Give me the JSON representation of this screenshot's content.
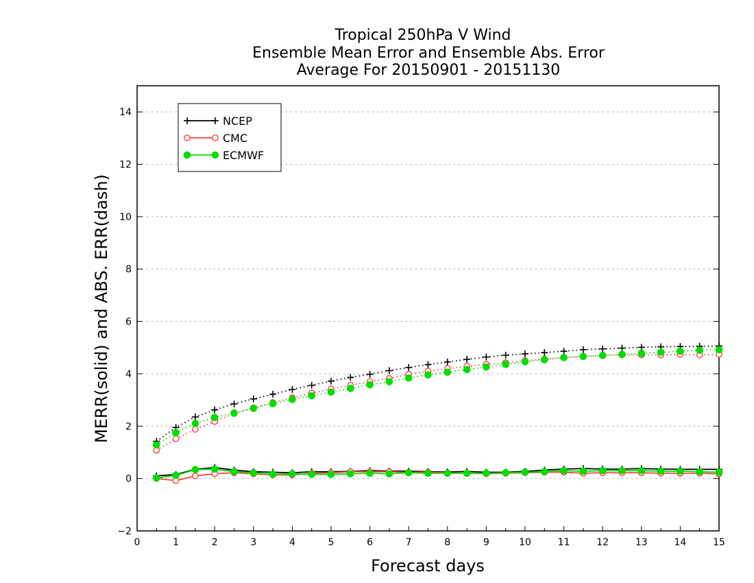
{
  "chart_data": {
    "type": "line",
    "title": "Tropical 250hPa V Wind",
    "subtitle": "Ensemble Mean Error and Ensemble Abs. Error",
    "subtitle2": "Average For 20150901 - 20151130",
    "xlabel": "Forecast days",
    "ylabel": "MERR(solid) and ABS. ERR(dash)",
    "xlim": [
      0,
      15
    ],
    "ylim": [
      -2,
      15
    ],
    "xticks": [
      "0",
      "1",
      "2",
      "3",
      "4",
      "5",
      "6",
      "7",
      "8",
      "9",
      "10",
      "11",
      "12",
      "13",
      "14",
      "15"
    ],
    "yticks": [
      "−2",
      "0",
      "2",
      "4",
      "6",
      "8",
      "10",
      "12",
      "14"
    ],
    "grid": "horizontal dotted at y ticks",
    "legend_position": "top-left",
    "x": [
      0.5,
      1,
      1.5,
      2,
      2.5,
      3,
      3.5,
      4,
      4.5,
      5,
      5.5,
      6,
      6.5,
      7,
      7.5,
      8,
      8.5,
      9,
      9.5,
      10,
      10.5,
      11,
      11.5,
      12,
      12.5,
      13,
      13.5,
      14,
      14.5,
      15
    ],
    "series": [
      {
        "name": "NCEP",
        "color": "#000000",
        "marker": "plus",
        "abs_error": [
          1.42,
          1.95,
          2.35,
          2.62,
          2.85,
          3.04,
          3.22,
          3.4,
          3.56,
          3.72,
          3.86,
          3.98,
          4.12,
          4.24,
          4.35,
          4.45,
          4.55,
          4.64,
          4.71,
          4.76,
          4.81,
          4.86,
          4.92,
          4.95,
          4.98,
          5.01,
          5.03,
          5.04,
          5.05,
          5.06
        ],
        "mean_error": [
          0.1,
          0.15,
          0.35,
          0.42,
          0.32,
          0.26,
          0.24,
          0.22,
          0.26,
          0.26,
          0.27,
          0.3,
          0.28,
          0.28,
          0.26,
          0.25,
          0.27,
          0.24,
          0.24,
          0.27,
          0.32,
          0.36,
          0.38,
          0.36,
          0.36,
          0.38,
          0.36,
          0.35,
          0.35,
          0.35
        ]
      },
      {
        "name": "CMC",
        "color": "#ff4040",
        "marker": "open-circle",
        "abs_error": [
          1.08,
          1.52,
          1.88,
          2.18,
          2.48,
          2.7,
          2.9,
          3.08,
          3.26,
          3.42,
          3.56,
          3.7,
          3.82,
          3.98,
          4.1,
          4.2,
          4.28,
          4.36,
          4.42,
          4.5,
          4.56,
          4.62,
          4.66,
          4.7,
          4.72,
          4.72,
          4.72,
          4.74,
          4.72,
          4.74
        ],
        "mean_error": [
          0.0,
          -0.08,
          0.1,
          0.18,
          0.22,
          0.18,
          0.14,
          0.14,
          0.2,
          0.22,
          0.26,
          0.26,
          0.26,
          0.24,
          0.24,
          0.22,
          0.2,
          0.18,
          0.2,
          0.22,
          0.24,
          0.24,
          0.2,
          0.22,
          0.22,
          0.22,
          0.2,
          0.2,
          0.2,
          0.18
        ]
      },
      {
        "name": "ECMWF",
        "color": "#00dd00",
        "marker": "filled-circle",
        "abs_error": [
          1.28,
          1.75,
          2.1,
          2.33,
          2.5,
          2.68,
          2.86,
          3.02,
          3.16,
          3.3,
          3.44,
          3.58,
          3.7,
          3.84,
          3.96,
          4.06,
          4.16,
          4.26,
          4.36,
          4.46,
          4.54,
          4.62,
          4.66,
          4.7,
          4.74,
          4.78,
          4.82,
          4.86,
          4.9,
          4.92
        ],
        "mean_error": [
          0.02,
          0.12,
          0.34,
          0.36,
          0.26,
          0.22,
          0.16,
          0.18,
          0.16,
          0.16,
          0.18,
          0.2,
          0.18,
          0.22,
          0.2,
          0.2,
          0.2,
          0.2,
          0.22,
          0.24,
          0.26,
          0.3,
          0.28,
          0.3,
          0.3,
          0.3,
          0.28,
          0.28,
          0.26,
          0.24
        ]
      }
    ]
  }
}
